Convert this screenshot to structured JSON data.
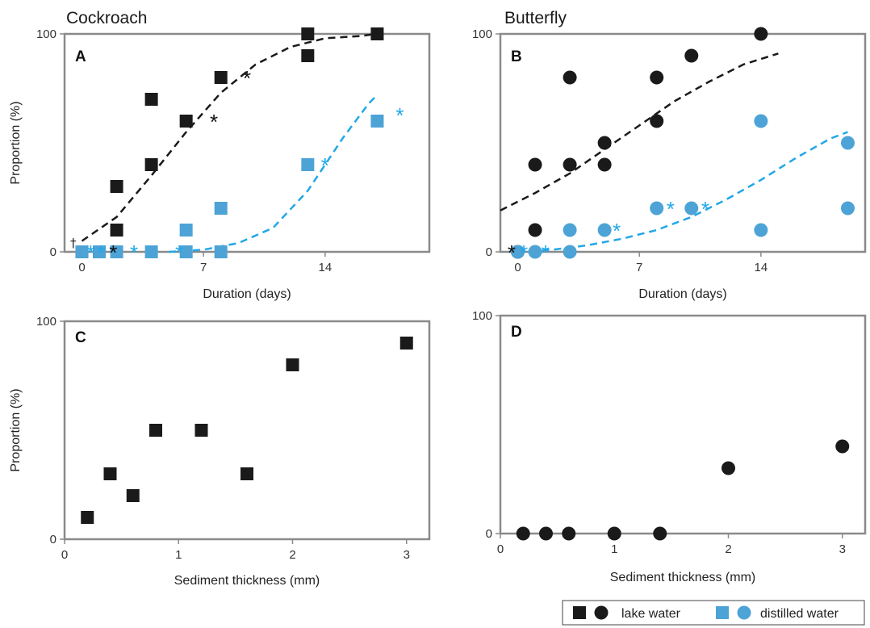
{
  "colors": {
    "lake": "#1a1a1a",
    "distilled": "#4da3d6",
    "star_lake": "#111111",
    "star_distilled": "#22a7e8"
  },
  "legend": {
    "lake_label": "lake water",
    "distilled_label": "distilled water"
  },
  "panels": [
    {
      "id": "A",
      "title": "Cockroach",
      "letter": "A",
      "marker": "square",
      "ylabel": "Proportion (%)",
      "xlabel": "Duration (days)",
      "show_xlabel": true,
      "show_ylabel": true
    },
    {
      "id": "B",
      "title": "Butterfly",
      "letter": "B",
      "marker": "circle",
      "ylabel": "",
      "xlabel": "Duration (days)",
      "show_xlabel": true,
      "show_ylabel": false
    },
    {
      "id": "C",
      "title": "",
      "letter": "C",
      "marker": "square",
      "ylabel": "Proportion (%)",
      "xlabel": "Sediment thickness (mm)",
      "show_xlabel": true,
      "show_ylabel": true
    },
    {
      "id": "D",
      "title": "",
      "letter": "D",
      "marker": "circle",
      "ylabel": "",
      "xlabel": "Sediment thickness (mm)",
      "show_xlabel": true,
      "show_ylabel": false
    }
  ],
  "chart_data": [
    {
      "panel": "A",
      "type": "scatter",
      "title": "Cockroach",
      "xlabel": "Duration (days)",
      "ylabel": "Proportion (%)",
      "xlim": [
        -1.0,
        20.0
      ],
      "ylim": [
        0,
        100
      ],
      "xticks": [
        0,
        7,
        14
      ],
      "yticks": [
        0,
        100
      ],
      "series": [
        {
          "name": "lake water",
          "color": "#1a1a1a",
          "marker": "square",
          "points": [
            [
              0,
              0
            ],
            [
              1,
              0
            ],
            [
              2,
              30
            ],
            [
              2,
              10
            ],
            [
              4,
              70
            ],
            [
              4,
              40
            ],
            [
              6,
              60
            ],
            [
              8,
              80
            ],
            [
              13,
              100
            ],
            [
              13,
              90
            ],
            [
              17,
              100
            ]
          ]
        },
        {
          "name": "distilled water",
          "color": "#4da3d6",
          "marker": "square",
          "points": [
            [
              0,
              0
            ],
            [
              1,
              0
            ],
            [
              2,
              0
            ],
            [
              4,
              0
            ],
            [
              6,
              10
            ],
            [
              6,
              0
            ],
            [
              8,
              20
            ],
            [
              8,
              0
            ],
            [
              13,
              40
            ],
            [
              17,
              60
            ]
          ]
        }
      ],
      "fits": [
        {
          "color": "#1a1a1a",
          "points": [
            [
              0,
              5
            ],
            [
              2,
              16
            ],
            [
              4,
              35
            ],
            [
              6,
              55
            ],
            [
              8,
              73
            ],
            [
              10,
              86
            ],
            [
              12,
              94
            ],
            [
              14,
              98
            ],
            [
              16,
              99
            ],
            [
              17,
              100
            ]
          ]
        },
        {
          "color": "#22a7e8",
          "points": [
            [
              5,
              0
            ],
            [
              7,
              1
            ],
            [
              9,
              4
            ],
            [
              11,
              11
            ],
            [
              13,
              28
            ],
            [
              15,
              52
            ],
            [
              16.5,
              68
            ],
            [
              17,
              72
            ]
          ]
        }
      ],
      "annotations": [
        {
          "text": "†",
          "x": -0.5,
          "y": 3,
          "kind": "dagger"
        },
        {
          "text": "*",
          "x": 0.5,
          "y": 0,
          "kind": "star_distilled"
        },
        {
          "text": "*",
          "x": 1.1,
          "y": 0,
          "kind": "star_distilled"
        },
        {
          "text": "*",
          "x": 1.8,
          "y": 0,
          "kind": "star_lake"
        },
        {
          "text": "*",
          "x": 3.0,
          "y": 0,
          "kind": "star_distilled"
        },
        {
          "text": "*",
          "x": 5.6,
          "y": 0,
          "kind": "star_distilled"
        },
        {
          "text": "*",
          "x": 7.6,
          "y": 60,
          "kind": "star_lake"
        },
        {
          "text": "*",
          "x": 9.5,
          "y": 80,
          "kind": "star_lake"
        },
        {
          "text": "*",
          "x": 14.0,
          "y": 40,
          "kind": "star_distilled"
        },
        {
          "text": "*",
          "x": 18.3,
          "y": 63,
          "kind": "star_distilled"
        }
      ]
    },
    {
      "panel": "B",
      "type": "scatter",
      "title": "Butterfly",
      "xlabel": "Duration (days)",
      "ylabel": "",
      "xlim": [
        -1.0,
        20.0
      ],
      "ylim": [
        0,
        100
      ],
      "xticks": [
        0,
        7,
        14
      ],
      "yticks": [
        0,
        100
      ],
      "series": [
        {
          "name": "lake water",
          "color": "#1a1a1a",
          "marker": "circle",
          "points": [
            [
              0,
              0
            ],
            [
              1,
              10
            ],
            [
              1,
              40
            ],
            [
              3,
              80
            ],
            [
              3,
              40
            ],
            [
              5,
              50
            ],
            [
              5,
              40
            ],
            [
              8,
              80
            ],
            [
              8,
              60
            ],
            [
              10,
              90
            ],
            [
              14,
              100
            ]
          ]
        },
        {
          "name": "distilled water",
          "color": "#4da3d6",
          "marker": "circle",
          "points": [
            [
              0,
              0
            ],
            [
              1,
              0
            ],
            [
              3,
              10
            ],
            [
              3,
              0
            ],
            [
              5,
              10
            ],
            [
              8,
              20
            ],
            [
              10,
              20
            ],
            [
              14,
              60
            ],
            [
              14,
              10
            ],
            [
              19,
              50
            ],
            [
              19,
              20
            ]
          ]
        }
      ],
      "fits": [
        {
          "color": "#1a1a1a",
          "points": [
            [
              -1,
              19
            ],
            [
              1,
              27
            ],
            [
              3,
              36
            ],
            [
              5,
              47
            ],
            [
              7,
              58
            ],
            [
              9,
              69
            ],
            [
              11,
              78
            ],
            [
              13,
              86
            ],
            [
              15,
              91
            ]
          ]
        },
        {
          "color": "#22a7e8",
          "points": [
            [
              0,
              0
            ],
            [
              2,
              1
            ],
            [
              4,
              3
            ],
            [
              6,
              6
            ],
            [
              8,
              10
            ],
            [
              10,
              16
            ],
            [
              12,
              24
            ],
            [
              14,
              33
            ],
            [
              16,
              43
            ],
            [
              18,
              52
            ],
            [
              19,
              55
            ]
          ]
        }
      ],
      "annotations": [
        {
          "text": "*",
          "x": -0.35,
          "y": 0,
          "kind": "star_lake"
        },
        {
          "text": "*",
          "x": 0.35,
          "y": 0,
          "kind": "star_distilled"
        },
        {
          "text": "*",
          "x": 1.6,
          "y": 0,
          "kind": "star_distilled"
        },
        {
          "text": "*",
          "x": 5.7,
          "y": 10,
          "kind": "star_distilled"
        },
        {
          "text": "*",
          "x": 8.8,
          "y": 20,
          "kind": "star_distilled"
        },
        {
          "text": "*",
          "x": 10.8,
          "y": 20,
          "kind": "star_distilled"
        }
      ]
    },
    {
      "panel": "C",
      "type": "scatter",
      "title": "",
      "xlabel": "Sediment thickness (mm)",
      "ylabel": "Proportion (%)",
      "xlim": [
        0,
        3.2
      ],
      "ylim": [
        0,
        100
      ],
      "xticks": [
        0,
        1,
        2,
        3
      ],
      "yticks": [
        0,
        100
      ],
      "series": [
        {
          "name": "lake water",
          "color": "#1a1a1a",
          "marker": "square",
          "points": [
            [
              0.2,
              10
            ],
            [
              0.4,
              30
            ],
            [
              0.6,
              20
            ],
            [
              0.8,
              50
            ],
            [
              1.2,
              50
            ],
            [
              1.6,
              30
            ],
            [
              2.0,
              80
            ],
            [
              3.0,
              90
            ]
          ]
        }
      ],
      "fits": [],
      "annotations": []
    },
    {
      "panel": "D",
      "type": "scatter",
      "title": "",
      "xlabel": "Sediment thickness (mm)",
      "ylabel": "",
      "xlim": [
        0,
        3.2
      ],
      "ylim": [
        0,
        100
      ],
      "xticks": [
        0,
        1,
        2,
        3
      ],
      "yticks": [
        0,
        100
      ],
      "series": [
        {
          "name": "lake water",
          "color": "#1a1a1a",
          "marker": "circle",
          "points": [
            [
              0.2,
              0
            ],
            [
              0.4,
              0
            ],
            [
              0.6,
              0
            ],
            [
              1.0,
              0
            ],
            [
              1.4,
              0
            ],
            [
              2.0,
              30
            ],
            [
              3.0,
              40
            ]
          ]
        }
      ],
      "fits": [],
      "annotations": []
    }
  ]
}
